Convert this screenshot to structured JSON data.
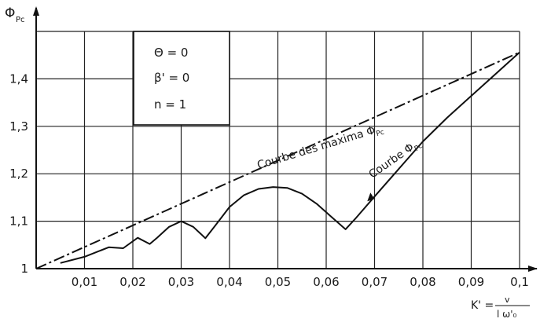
{
  "chart_data": {
    "type": "line",
    "ylabel": "Φ",
    "ylabel_subscript": "Pc",
    "xlabel": "K' =",
    "xlabel_numerator": "v",
    "xlabel_denominator": "l ω'₀",
    "xlim": [
      0,
      0.1
    ],
    "ylim": [
      1,
      1.5
    ],
    "grid": true,
    "x_ticks": [
      "0,01",
      "0,02",
      "0,03",
      "0,04",
      "0,05",
      "0,06",
      "0,07",
      "0,08",
      "0,09",
      "0,1"
    ],
    "y_ticks": [
      "1",
      "1,1",
      "1,2",
      "1,3",
      "1,4"
    ],
    "legend": {
      "lines": [
        "Θ = 0",
        "β' = 0",
        "n = 1"
      ]
    },
    "series": [
      {
        "name": "Courbe des maxima ΦPc",
        "style": "dash-dot",
        "x": [
          0,
          0.1
        ],
        "y": [
          1.0,
          1.456
        ]
      },
      {
        "name": "Courbe ΦPc",
        "style": "solid",
        "x": [
          0.005,
          0.01,
          0.015,
          0.018,
          0.021,
          0.0235,
          0.025,
          0.0275,
          0.03,
          0.0325,
          0.035,
          0.037,
          0.04,
          0.043,
          0.046,
          0.049,
          0.052,
          0.055,
          0.058,
          0.061,
          0.064,
          0.066,
          0.07,
          0.075,
          0.08,
          0.085,
          0.09,
          0.095,
          0.1
        ],
        "y": [
          1.012,
          1.025,
          1.045,
          1.043,
          1.065,
          1.052,
          1.065,
          1.088,
          1.1,
          1.088,
          1.064,
          1.09,
          1.13,
          1.155,
          1.168,
          1.172,
          1.17,
          1.158,
          1.137,
          1.11,
          1.083,
          1.105,
          1.152,
          1.21,
          1.268,
          1.318,
          1.364,
          1.41,
          1.456
        ]
      }
    ],
    "annotations": [
      {
        "text": "Courbe des maxima Φ",
        "subscript": "Pc",
        "x": 0.046,
        "y": 1.21,
        "rotate": -17
      },
      {
        "text": "Courbe Φ",
        "subscript": "Pc",
        "x": 0.0695,
        "y": 1.19,
        "rotate": -35
      }
    ]
  }
}
